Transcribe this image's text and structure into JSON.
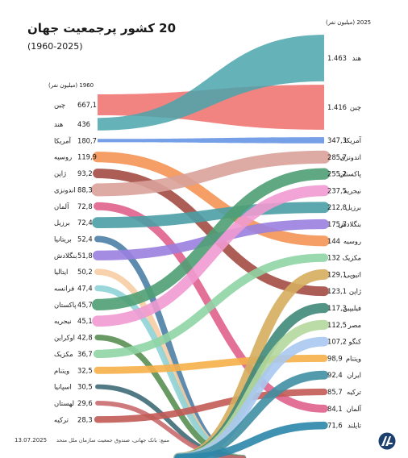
{
  "title": "20 کشور پرجمعیت جهان",
  "subtitle": "(1960-2025)",
  "left_header": "1960 (میلیون نفر)",
  "right_header": "2025 (میلیون نفر)",
  "date": "13.07.2025",
  "source": "منبع: بانک جهانی، صندوق جمعیت سازمان ملل متحد",
  "colors": {
    "background": "#ffffff",
    "text": "#1a1a1a"
  },
  "chart_data": {
    "type": "slope",
    "x": [
      "1960",
      "2025"
    ],
    "unit": "میلیون نفر",
    "series": [
      {
        "name": "چین",
        "v1960": 667.1,
        "v2025": 1416,
        "label1960": "667,1",
        "label2025": "1.416",
        "color": "#ee6e6a"
      },
      {
        "name": "هند",
        "v1960": 436,
        "v2025": 1463,
        "label1960": "436",
        "label2025": "1.463",
        "color": "#4aa5ad"
      },
      {
        "name": "آمریکا",
        "v1960": 180.7,
        "v2025": 347.3,
        "label1960": "180,7",
        "label2025": "347,3",
        "color": "#5d8ee3"
      },
      {
        "name": "روسیه",
        "v1960": 119.9,
        "v2025": 144,
        "label1960": "119,9",
        "label2025": "144",
        "color": "#f49454"
      },
      {
        "name": "ژاپن",
        "v1960": 93.2,
        "v2025": 123.1,
        "label1960": "93,2",
        "label2025": "123,1",
        "color": "#a34c44"
      },
      {
        "name": "اندونزی",
        "v1960": 88.3,
        "v2025": 285.7,
        "label1960": "88,3",
        "label2025": "285,7",
        "color": "#d9a19a"
      },
      {
        "name": "آلمان",
        "v1960": 72.8,
        "v2025": 84.1,
        "label1960": "72,8",
        "label2025": "84,1",
        "color": "#e0608c"
      },
      {
        "name": "برزیل",
        "v1960": 72.4,
        "v2025": 212.8,
        "label1960": "72,4",
        "label2025": "212,8",
        "color": "#4a9fa5"
      },
      {
        "name": "بریتانیا",
        "v1960": 52.4,
        "v2025": null,
        "label1960": "52,4",
        "label2025": "",
        "color": "#4c7fa6"
      },
      {
        "name": "بنگلادش",
        "v1960": 51.8,
        "v2025": 175.7,
        "label1960": "51,8",
        "label2025": "175,7",
        "color": "#9a7fe0"
      },
      {
        "name": "ایتالیا",
        "v1960": 50.2,
        "v2025": null,
        "label1960": "50,2",
        "label2025": "",
        "color": "#f6cda3"
      },
      {
        "name": "فرانسه",
        "v1960": 47.4,
        "v2025": null,
        "label1960": "47,4",
        "label2025": "",
        "color": "#8fd3d6"
      },
      {
        "name": "پاکستان",
        "v1960": 45.7,
        "v2025": 255.2,
        "label1960": "45,7",
        "label2025": "255,2",
        "color": "#4f9e73"
      },
      {
        "name": "نیجریه",
        "v1960": 45.1,
        "v2025": 237.5,
        "label1960": "45,1",
        "label2025": "237,5",
        "color": "#f09ad0"
      },
      {
        "name": "اوکراین",
        "v1960": 42.8,
        "v2025": null,
        "label1960": "42,8",
        "label2025": "",
        "color": "#5a8f52"
      },
      {
        "name": "مکزیک",
        "v1960": 36.7,
        "v2025": 132,
        "label1960": "36,7",
        "label2025": "132",
        "color": "#8fd4a4"
      },
      {
        "name": "ویتنام",
        "v1960": 32.5,
        "v2025": 98.9,
        "label1960": "32,5",
        "label2025": "98,9",
        "color": "#f6b04a"
      },
      {
        "name": "اسپانیا",
        "v1960": 30.5,
        "v2025": null,
        "label1960": "30,5",
        "label2025": "",
        "color": "#3f6b77"
      },
      {
        "name": "لهستان",
        "v1960": 29.6,
        "v2025": null,
        "label1960": "29,6",
        "label2025": "",
        "color": "#c96c6f"
      },
      {
        "name": "ترکیه",
        "v1960": 28.3,
        "v2025": 85.7,
        "label1960": "28,3",
        "label2025": "85,7",
        "color": "#c25a55"
      },
      {
        "name": "اتیوپی",
        "v1960": null,
        "v2025": 129.1,
        "label1960": "",
        "label2025": "129,1",
        "color": "#d5ad5e"
      },
      {
        "name": "فیلیپین",
        "v1960": null,
        "v2025": 117.3,
        "label1960": "",
        "label2025": "117,3",
        "color": "#3f8a7a"
      },
      {
        "name": "مصر",
        "v1960": null,
        "v2025": 112.5,
        "label1960": "",
        "label2025": "112,5",
        "color": "#b4d89c"
      },
      {
        "name": "کنگو",
        "v1960": null,
        "v2025": 107.2,
        "label1960": "",
        "label2025": "107,2",
        "color": "#a9c8ef"
      },
      {
        "name": "ایران",
        "v1960": null,
        "v2025": 92.4,
        "label1960": "",
        "label2025": "92,4",
        "color": "#3f8fa3"
      },
      {
        "name": "تایلند",
        "v1960": null,
        "v2025": 71.6,
        "label1960": "",
        "label2025": "71,6",
        "color": "#2a86a8"
      }
    ]
  }
}
